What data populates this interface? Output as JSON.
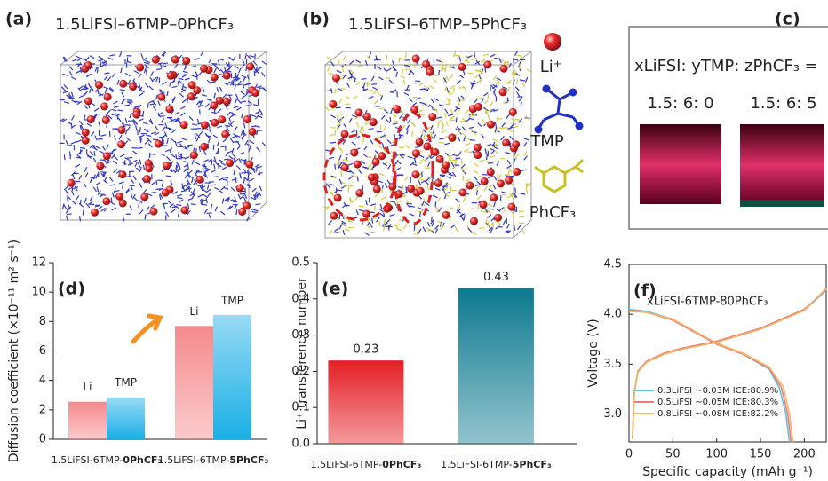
{
  "panels": [
    {
      "label": "(a)",
      "title": "1.5LiFSI–6TMP–0PhCF₃"
    },
    {
      "label": "(b)",
      "title": "1.5LiFSI–6TMP–5PhCF₃"
    },
    {
      "label": "(c)",
      "title": "xLiFSI: yTMP: zPhCF₃ =",
      "samples": [
        "1.5: 6: 0",
        "1.5: 6: 5"
      ]
    }
  ],
  "legend_species": [
    "Li⁺",
    "TMP",
    "PhCF₃"
  ],
  "chart_data": [
    {
      "type": "bar",
      "label": "(d)",
      "y_label": "Diffusion coefficient (×10⁻¹¹ m² s⁻¹)",
      "categories": [
        "1.5LiFSI-6TMP-0PhCF₃",
        "1.5LiFSI-6TMP-5PhCF₃"
      ],
      "series": [
        {
          "name": "Li",
          "color": "#f58a8e",
          "values": [
            2.55,
            7.7
          ]
        },
        {
          "name": "TMP",
          "color": "#1aaee6",
          "values": [
            2.85,
            8.45
          ]
        }
      ],
      "ylim": [
        0,
        12
      ],
      "yticks": [
        0,
        2,
        4,
        6,
        8,
        10,
        12
      ]
    },
    {
      "type": "bar",
      "label": "(e)",
      "y_label": "Li⁺ transference number",
      "categories": [
        "1.5LiFSI-6TMP-0PhCF₃",
        "1.5LiFSI-6TMP-5PhCF₃"
      ],
      "values": [
        0.23,
        0.43
      ],
      "colors": [
        "#e41f25",
        "#0e7a90"
      ],
      "ylim": [
        0,
        0.5
      ],
      "yticks": [
        {
          "value": 0,
          "label": "0.0"
        },
        0.1,
        0.2,
        0.3,
        0.4,
        0.5
      ]
    },
    {
      "type": "line",
      "label": "(f)",
      "annotation": "xLiFSI-6TMP-80PhCF₃",
      "x_label": "Specific capacity (mAh g⁻¹)",
      "y_label": "Voltage (V)",
      "xlim": [
        0,
        225
      ],
      "ylim": [
        2.72,
        4.5
      ],
      "xticks": [
        0,
        50,
        100,
        150,
        200
      ],
      "yticks": [
        {
          "value": 3,
          "label": "3.0"
        },
        3.5,
        {
          "value": 4,
          "label": "4.0"
        },
        4.5
      ],
      "legend": "lower left",
      "series": [
        {
          "name": "0.3LiFSI ~0.03M  ICE:80.9%",
          "color": "#5bc4e6",
          "x": [
            4,
            6,
            10,
            20,
            40,
            60,
            100,
            150,
            200,
            225,
            null,
            0,
            20,
            50,
            100,
            130,
            160,
            172,
            179,
            183
          ],
          "values": [
            2.75,
            3.2,
            3.42,
            3.52,
            3.6,
            3.65,
            3.72,
            3.85,
            4.04,
            4.24,
            null,
            4.05,
            4.03,
            3.95,
            3.71,
            3.6,
            3.45,
            3.25,
            3.0,
            2.72
          ]
        },
        {
          "name": "0.5LiFSI ~0.05M  ICE:80.3%",
          "color": "#f07a7a",
          "x": [
            4,
            6,
            10,
            20,
            40,
            60,
            100,
            150,
            200,
            225,
            null,
            0,
            20,
            50,
            100,
            130,
            160,
            174,
            181,
            185
          ],
          "values": [
            2.75,
            3.22,
            3.43,
            3.53,
            3.61,
            3.66,
            3.73,
            3.86,
            4.05,
            4.25,
            null,
            4.04,
            4.02,
            3.94,
            3.7,
            3.6,
            3.46,
            3.26,
            3.0,
            2.72
          ]
        },
        {
          "name": "0.8LiFSI ~0.08M  ICE:82.2%",
          "color": "#f5b45e",
          "x": [
            4,
            6,
            10,
            20,
            40,
            60,
            100,
            150,
            200,
            225,
            null,
            0,
            20,
            50,
            100,
            130,
            160,
            176,
            183,
            187
          ],
          "values": [
            2.75,
            3.21,
            3.42,
            3.52,
            3.6,
            3.65,
            3.72,
            3.85,
            4.04,
            4.26,
            null,
            4.03,
            4.02,
            3.95,
            3.71,
            3.61,
            3.47,
            3.27,
            3.0,
            2.72
          ]
        }
      ]
    }
  ]
}
